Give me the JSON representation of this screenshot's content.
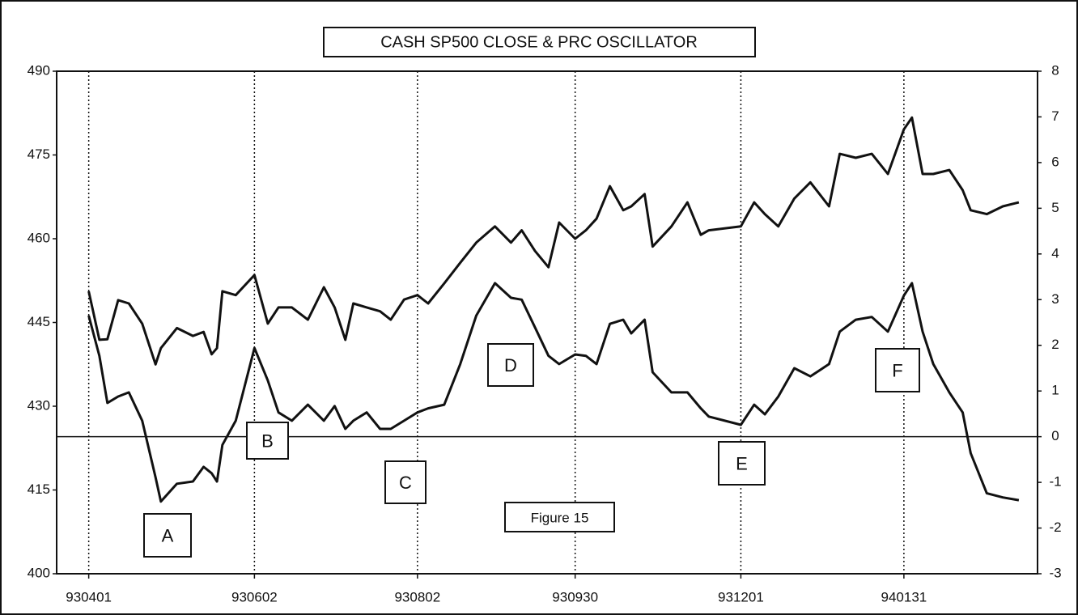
{
  "chart_data": {
    "type": "line",
    "title": "CASH SP500 CLOSE & PRC OSCILLATOR",
    "annotations": [
      "A",
      "B",
      "C",
      "D",
      "E",
      "F",
      "Figure 15"
    ],
    "x": [
      "930401",
      "930405",
      "930408",
      "930412",
      "930416",
      "930421",
      "930426",
      "930428",
      "930504",
      "930510",
      "930514",
      "930517",
      "930519",
      "930521",
      "930526",
      "930602",
      "930607",
      "930611",
      "930616",
      "930622",
      "930628",
      "930702",
      "930706",
      "930709",
      "930714",
      "930719",
      "930723",
      "930728",
      "930802",
      "930806",
      "930812",
      "930818",
      "930824",
      "930831",
      "930906",
      "930910",
      "930915",
      "930920",
      "930924",
      "930930",
      "931004",
      "931008",
      "931013",
      "931018",
      "931021",
      "931026",
      "931029",
      "931105",
      "931111",
      "931116",
      "931119",
      "931201",
      "931206",
      "931210",
      "931215",
      "931221",
      "931227",
      "940103",
      "940107",
      "940113",
      "940119",
      "940125",
      "940131",
      "940203",
      "940207",
      "940211",
      "940217",
      "940222",
      "940225",
      "940303",
      "940309",
      "940315"
    ],
    "series": [
      {
        "name": "CASH SP500 CLOSE",
        "color": "#111111",
        "axis": "y",
        "values": [
          450.6,
          441.9,
          442,
          449,
          448.4,
          444.8,
          437.5,
          440.4,
          444,
          442.6,
          443.3,
          439.3,
          440.4,
          450.6,
          449.9,
          453.5,
          444.8,
          447.7,
          447.7,
          445.5,
          451.3,
          447.7,
          441.9,
          448.4,
          447.7,
          447,
          445.5,
          449.1,
          449.9,
          448.4,
          452,
          455.7,
          459.3,
          462.2,
          459.3,
          461.5,
          457.8,
          454.9,
          462.9,
          460,
          461.5,
          463.6,
          469.4,
          465.1,
          465.8,
          468,
          458.6,
          462.2,
          466.5,
          460.7,
          461.5,
          462.2,
          466.5,
          464.4,
          462.2,
          467.2,
          470.1,
          465.8,
          475.2,
          474.5,
          475.2,
          471.6,
          479.6,
          481.7,
          471.6,
          471.6,
          472.3,
          468.7,
          465.1,
          464.4,
          465.8,
          466.5
        ]
      },
      {
        "name": "PRC OSCILLATOR",
        "color": "#111111",
        "axis": "y2",
        "values": [
          2.65,
          1.77,
          0.74,
          0.88,
          0.97,
          0.35,
          -0.89,
          -1.42,
          -1.03,
          -0.98,
          -0.66,
          -0.8,
          -0.98,
          -0.18,
          0.35,
          1.94,
          1.23,
          0.53,
          0.35,
          0.7,
          0.35,
          0.67,
          0.17,
          0.35,
          0.53,
          0.17,
          0.17,
          0.35,
          0.53,
          0.62,
          0.7,
          1.59,
          2.65,
          3.36,
          3.04,
          3.0,
          2.39,
          1.77,
          1.59,
          1.8,
          1.77,
          1.59,
          2.47,
          2.56,
          2.26,
          2.56,
          1.41,
          0.97,
          0.97,
          0.62,
          0.44,
          0.26,
          0.7,
          0.49,
          0.88,
          1.5,
          1.32,
          1.59,
          2.3,
          2.56,
          2.62,
          2.3,
          3.09,
          3.36,
          2.3,
          1.59,
          0.97,
          0.53,
          -0.36,
          -1.24,
          -1.33,
          -1.39
        ]
      }
    ],
    "xlim": [
      "930320",
      "940322"
    ],
    "xticks": [
      "930401",
      "930602",
      "930802",
      "930930",
      "931201",
      "940131"
    ],
    "ylim": [
      400,
      490
    ],
    "yticks": [
      400,
      415,
      430,
      445,
      460,
      475,
      490
    ],
    "y2lim": [
      -3,
      8
    ],
    "y2ticks": [
      -3,
      -2,
      -1,
      0,
      1,
      2,
      3,
      4,
      5,
      6,
      7,
      8
    ],
    "grid": true
  }
}
